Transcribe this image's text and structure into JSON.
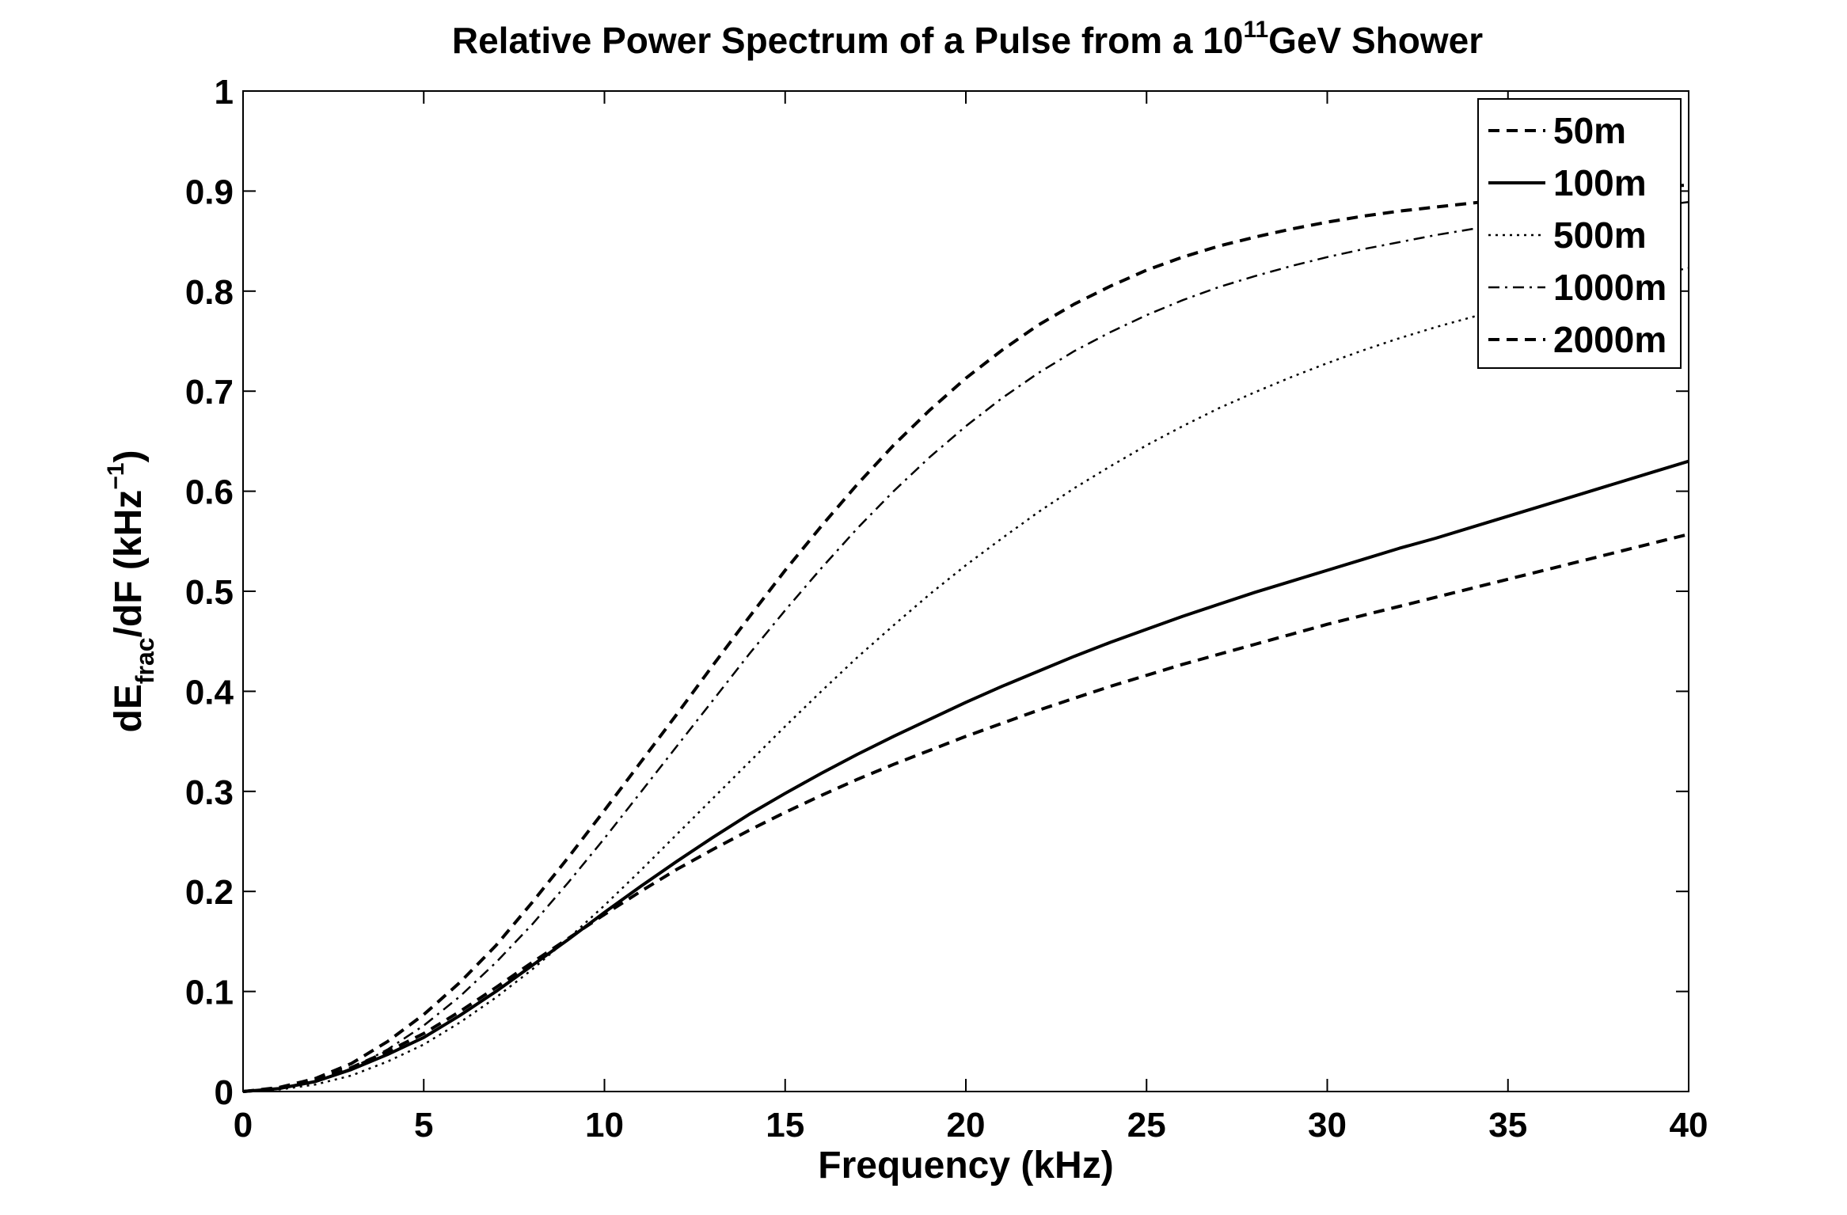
{
  "chart_data": {
    "type": "line",
    "title": {
      "prefix": "Relative Power Spectrum of a Pulse from a 10",
      "superscript": "11",
      "suffix": "GeV Shower"
    },
    "xlabel": "Frequency (kHz)",
    "ylabel": {
      "part1": "dE",
      "subscript": "frac",
      "part2": "/dF (kHz",
      "superscript": "−1",
      "part3": ")"
    },
    "xlim": [
      0,
      40
    ],
    "ylim": [
      0,
      1
    ],
    "xticks": [
      "0",
      "5",
      "10",
      "15",
      "20",
      "25",
      "30",
      "35",
      "40"
    ],
    "yticks": [
      "0",
      "0.1",
      "0.2",
      "0.3",
      "0.4",
      "0.5",
      "0.6",
      "0.7",
      "0.8",
      "0.9",
      "1"
    ],
    "grid": false,
    "legend_position": "top-right",
    "x": [
      0,
      1,
      2,
      3,
      4,
      5,
      6,
      7,
      8,
      9,
      10,
      11,
      12,
      13,
      14,
      15,
      16,
      17,
      18,
      19,
      20,
      21,
      22,
      23,
      24,
      25,
      26,
      27,
      28,
      29,
      30,
      31,
      32,
      33,
      34,
      35,
      36,
      37,
      38,
      39,
      40
    ],
    "series": [
      {
        "name": "50m",
        "style": "dashed",
        "values": [
          0,
          0.004,
          0.013,
          0.028,
          0.05,
          0.077,
          0.109,
          0.146,
          0.189,
          0.234,
          0.281,
          0.329,
          0.377,
          0.426,
          0.474,
          0.521,
          0.565,
          0.607,
          0.646,
          0.681,
          0.713,
          0.741,
          0.766,
          0.787,
          0.805,
          0.821,
          0.834,
          0.845,
          0.854,
          0.862,
          0.869,
          0.875,
          0.88,
          0.884,
          0.888,
          0.892,
          0.895,
          0.898,
          0.901,
          0.904,
          0.906
        ]
      },
      {
        "name": "100m",
        "style": "solid",
        "values": [
          0,
          0.003,
          0.01,
          0.022,
          0.037,
          0.054,
          0.076,
          0.1,
          0.126,
          0.152,
          0.179,
          0.205,
          0.23,
          0.254,
          0.277,
          0.298,
          0.318,
          0.337,
          0.355,
          0.372,
          0.389,
          0.405,
          0.42,
          0.435,
          0.449,
          0.462,
          0.475,
          0.487,
          0.499,
          0.51,
          0.521,
          0.532,
          0.543,
          0.553,
          0.564,
          0.575,
          0.586,
          0.597,
          0.608,
          0.619,
          0.63
        ]
      },
      {
        "name": "500m",
        "style": "dotted",
        "values": [
          0,
          0.002,
          0.007,
          0.016,
          0.03,
          0.047,
          0.069,
          0.094,
          0.122,
          0.153,
          0.186,
          0.221,
          0.257,
          0.293,
          0.329,
          0.365,
          0.4,
          0.434,
          0.466,
          0.497,
          0.526,
          0.553,
          0.579,
          0.603,
          0.625,
          0.646,
          0.665,
          0.683,
          0.699,
          0.714,
          0.728,
          0.741,
          0.753,
          0.764,
          0.774,
          0.784,
          0.793,
          0.801,
          0.809,
          0.816,
          0.823
        ]
      },
      {
        "name": "1000m",
        "style": "dashdot",
        "values": [
          0,
          0.003,
          0.01,
          0.023,
          0.042,
          0.066,
          0.095,
          0.129,
          0.167,
          0.209,
          0.253,
          0.299,
          0.345,
          0.391,
          0.437,
          0.481,
          0.523,
          0.563,
          0.6,
          0.634,
          0.665,
          0.693,
          0.718,
          0.74,
          0.759,
          0.776,
          0.791,
          0.804,
          0.815,
          0.825,
          0.834,
          0.842,
          0.849,
          0.856,
          0.862,
          0.867,
          0.872,
          0.877,
          0.881,
          0.885,
          0.889
        ]
      },
      {
        "name": "2000m",
        "style": "dashed",
        "values": [
          0,
          0.003,
          0.011,
          0.024,
          0.04,
          0.058,
          0.08,
          0.104,
          0.129,
          0.153,
          0.177,
          0.2,
          0.222,
          0.242,
          0.261,
          0.279,
          0.296,
          0.312,
          0.327,
          0.341,
          0.355,
          0.368,
          0.381,
          0.393,
          0.405,
          0.416,
          0.427,
          0.437,
          0.447,
          0.457,
          0.467,
          0.476,
          0.485,
          0.494,
          0.503,
          0.512,
          0.521,
          0.53,
          0.539,
          0.548,
          0.557
        ]
      }
    ]
  }
}
